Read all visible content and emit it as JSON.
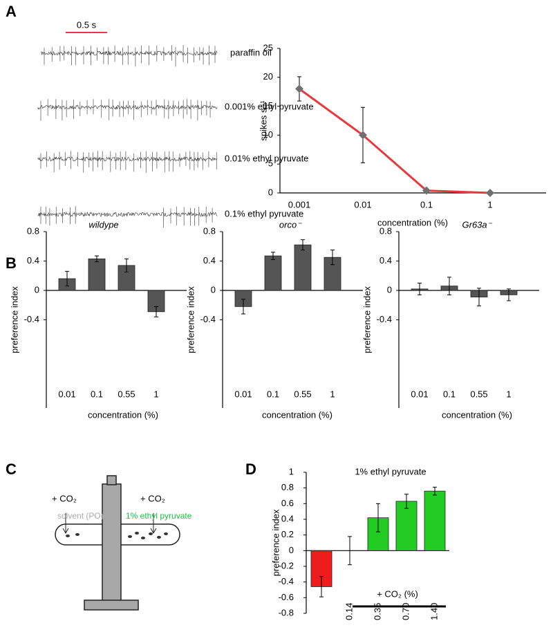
{
  "panel_labels": [
    "A",
    "B",
    "C",
    "D"
  ],
  "traces": {
    "scale_label": "0.5 s",
    "labels": [
      "paraffin oil",
      "0.001% ethyl pyruvate",
      "0.01% ethyl pyruvate",
      "0.1% ethyl pyruvate"
    ]
  },
  "diagram": {
    "co2_left": "+ CO₂",
    "co2_right": "+ CO₂",
    "left_label": "solvent (PO)",
    "right_label": "1% ethyl pyruvate"
  },
  "chart_data": [
    {
      "type": "line",
      "ylabel": "spikes s⁻¹",
      "xlabel": "concentration (%)",
      "categories": [
        "0.001",
        "0.01",
        "0.1",
        "1"
      ],
      "values": [
        18,
        10,
        0.4,
        0
      ],
      "errors": [
        2.1,
        4.8,
        0.3,
        0
      ],
      "color": "#e8383d",
      "marker_color": "#707070",
      "ylim": [
        0,
        25
      ],
      "yticks": [
        0,
        5,
        10,
        15,
        20,
        25
      ]
    },
    {
      "type": "bar",
      "title": "wildype",
      "ylabel": "preference index",
      "xlabel": "concentration (%)",
      "categories": [
        "0.01",
        "0.1",
        "0.55",
        "1"
      ],
      "values": [
        0.16,
        0.43,
        0.34,
        -0.29
      ],
      "errors": [
        0.1,
        0.04,
        0.09,
        0.07
      ],
      "color": "#555555",
      "ylim": [
        -1.6,
        0.8
      ],
      "yticks": [
        -0.4,
        0,
        0.4,
        0.8
      ]
    },
    {
      "type": "bar",
      "title": "orco⁻",
      "ylabel": "preference index",
      "xlabel": "concentration (%)",
      "categories": [
        "0.01",
        "0.1",
        "0.55",
        "1"
      ],
      "values": [
        -0.22,
        0.47,
        0.62,
        0.45
      ],
      "errors": [
        0.1,
        0.05,
        0.07,
        0.1
      ],
      "color": "#555555",
      "ylim": [
        -1.6,
        0.8
      ],
      "yticks": [
        -0.4,
        0,
        0.4,
        0.8
      ]
    },
    {
      "type": "bar",
      "title": "Gr63a⁻",
      "ylabel": "preference index",
      "xlabel": "concentration (%)",
      "categories": [
        "0.01",
        "0.1",
        "0.55",
        "1"
      ],
      "values": [
        0.02,
        0.06,
        -0.09,
        -0.06
      ],
      "errors": [
        0.08,
        0.12,
        0.12,
        0.08
      ],
      "color": "#555555",
      "ylim": [
        -1.6,
        0.8
      ],
      "yticks": [
        -0.4,
        0,
        0.4,
        0.8
      ]
    },
    {
      "type": "bar",
      "title": "1% ethyl pyruvate",
      "ylabel": "preference index",
      "annotation": "+ CO₂ (%)",
      "categories": [
        null,
        "0.14",
        "0.35",
        "0.70",
        "1.40"
      ],
      "values": [
        -0.46,
        0,
        0.42,
        0.63,
        0.76
      ],
      "errors": [
        0.13,
        0.18,
        0.18,
        0.09,
        0.05
      ],
      "colors": [
        "#ee1c1c",
        "#22cc22",
        "#22cc22",
        "#22cc22",
        "#22cc22"
      ],
      "ylim": [
        -0.8,
        1
      ],
      "yticks": [
        -0.8,
        -0.6,
        -0.4,
        -0.2,
        0,
        0.2,
        0.4,
        0.6,
        0.8,
        1
      ]
    }
  ]
}
